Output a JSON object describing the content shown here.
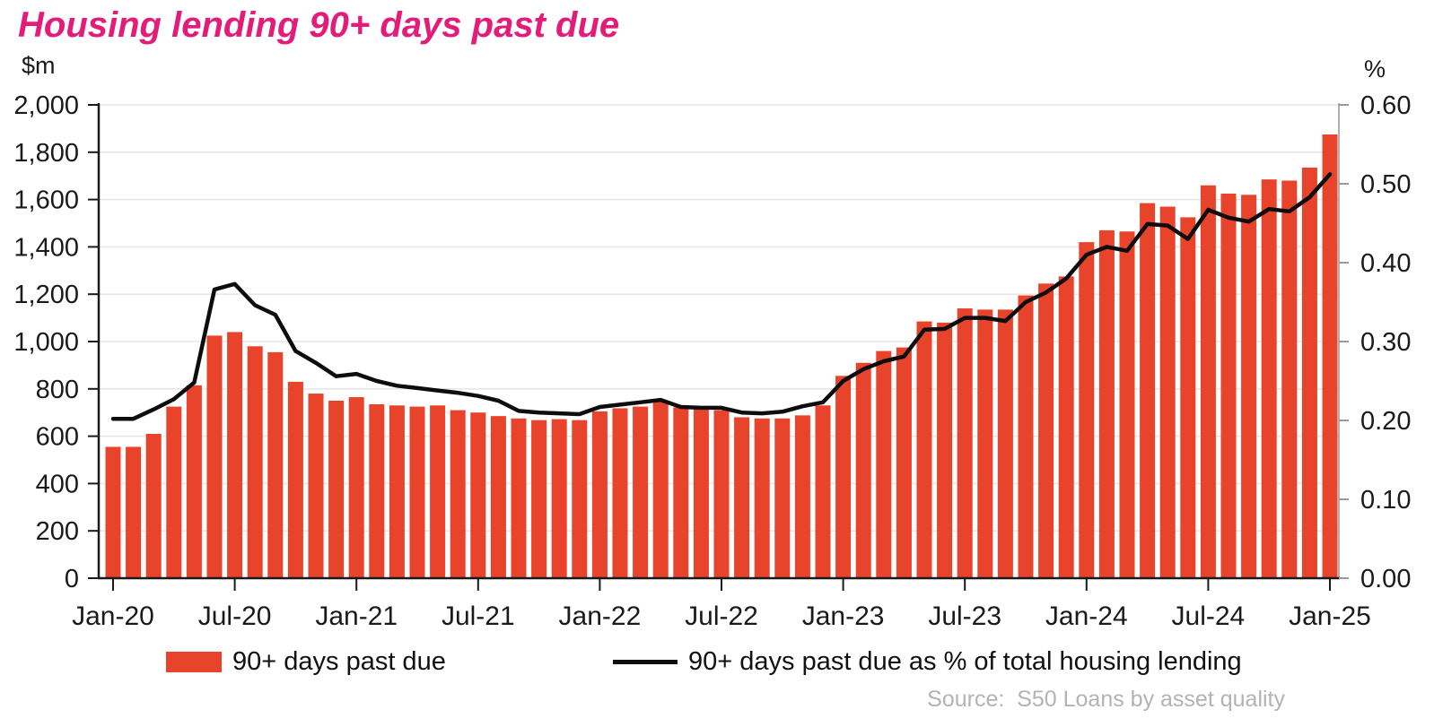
{
  "title": "Housing lending 90+ days past due",
  "left_axis_unit": "$m",
  "right_axis_unit": "%",
  "source": "Source:  S50 Loans by asset quality",
  "legend": {
    "bar_label": "90+ days past due",
    "line_label": "90+ days past due as % of total housing lending"
  },
  "colors": {
    "title": "#e31c79",
    "bar": "#e8432b",
    "line": "#0d0d0d",
    "grid": "#e7e7e7",
    "axis": "#1a1a1a",
    "right_axis": "#9a9a9a",
    "source_text": "#b3b3b3"
  },
  "chart_data": {
    "type": "bar",
    "subtype": "bar+line dual axis",
    "title": "Housing lending 90+ days past due",
    "grid": true,
    "legend_position": "bottom",
    "x": [
      "Jan-20",
      "Feb-20",
      "Mar-20",
      "Apr-20",
      "May-20",
      "Jun-20",
      "Jul-20",
      "Aug-20",
      "Sep-20",
      "Oct-20",
      "Nov-20",
      "Dec-20",
      "Jan-21",
      "Feb-21",
      "Mar-21",
      "Apr-21",
      "May-21",
      "Jun-21",
      "Jul-21",
      "Aug-21",
      "Sep-21",
      "Oct-21",
      "Nov-21",
      "Dec-21",
      "Jan-22",
      "Feb-22",
      "Mar-22",
      "Apr-22",
      "May-22",
      "Jun-22",
      "Jul-22",
      "Aug-22",
      "Sep-22",
      "Oct-22",
      "Nov-22",
      "Dec-22",
      "Jan-23",
      "Feb-23",
      "Mar-23",
      "Apr-23",
      "May-23",
      "Jun-23",
      "Jul-23",
      "Aug-23",
      "Sep-23",
      "Oct-23",
      "Nov-23",
      "Dec-23",
      "Jan-24",
      "Feb-24",
      "Mar-24",
      "Apr-24",
      "May-24",
      "Jun-24",
      "Jul-24",
      "Aug-24",
      "Sep-24",
      "Oct-24",
      "Nov-24",
      "Dec-24",
      "Jan-25"
    ],
    "x_tick_labels": [
      "Jan-20",
      "Jul-20",
      "Jan-21",
      "Jul-21",
      "Jan-22",
      "Jul-22",
      "Jan-23",
      "Jul-23",
      "Jan-24",
      "Jul-24",
      "Jan-25"
    ],
    "left_axis": {
      "label": "$m",
      "min": 0,
      "max": 2000,
      "step": 200
    },
    "right_axis": {
      "label": "%",
      "min": 0.0,
      "max": 0.6,
      "step": 0.1
    },
    "series": [
      {
        "name": "90+ days past due",
        "type": "bar",
        "axis": "left",
        "values": [
          555,
          555,
          610,
          725,
          815,
          1025,
          1040,
          980,
          955,
          830,
          780,
          750,
          765,
          735,
          730,
          725,
          730,
          710,
          700,
          685,
          675,
          668,
          672,
          668,
          705,
          718,
          725,
          748,
          722,
          715,
          710,
          680,
          675,
          675,
          688,
          730,
          855,
          910,
          960,
          975,
          1085,
          1080,
          1140,
          1135,
          1135,
          1195,
          1245,
          1275,
          1420,
          1470,
          1465,
          1585,
          1570,
          1525,
          1660,
          1625,
          1620,
          1685,
          1680,
          1735,
          1875
        ]
      },
      {
        "name": "90+ days past due as % of total housing lending",
        "type": "line",
        "axis": "right",
        "values": [
          0.202,
          0.202,
          0.214,
          0.227,
          0.248,
          0.366,
          0.373,
          0.346,
          0.334,
          0.288,
          0.273,
          0.256,
          0.259,
          0.25,
          0.244,
          0.241,
          0.238,
          0.235,
          0.231,
          0.225,
          0.212,
          0.21,
          0.209,
          0.208,
          0.217,
          0.22,
          0.223,
          0.226,
          0.217,
          0.216,
          0.216,
          0.21,
          0.209,
          0.211,
          0.218,
          0.223,
          0.25,
          0.265,
          0.275,
          0.281,
          0.315,
          0.316,
          0.33,
          0.33,
          0.326,
          0.35,
          0.362,
          0.38,
          0.41,
          0.42,
          0.415,
          0.449,
          0.447,
          0.43,
          0.467,
          0.457,
          0.452,
          0.468,
          0.465,
          0.483,
          0.512
        ]
      }
    ]
  }
}
